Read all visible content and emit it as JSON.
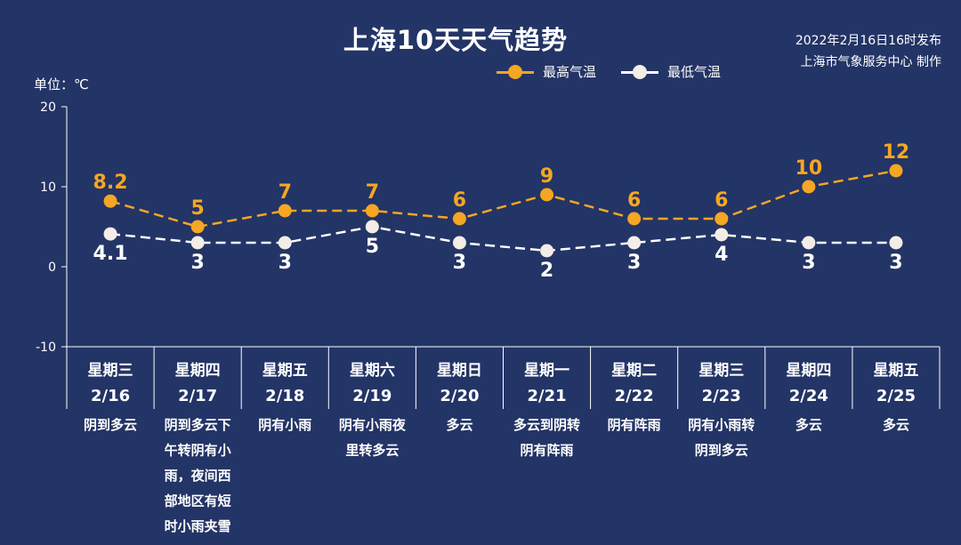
{
  "header": {
    "title": "上海10天天气趋势",
    "issue_time": "2022年2月16日16时发布",
    "issuer": "上海市气象服务中心 制作"
  },
  "unit_label": "单位：℃",
  "colors": {
    "background": "#233466",
    "high": "#f5a623",
    "low": "#ffffff"
  },
  "chart_data": {
    "type": "line",
    "ylim": [
      -10,
      20
    ],
    "yticks": [
      -10,
      0,
      10,
      20
    ],
    "grid": false,
    "legend_position": "top-right",
    "categories": [
      "2/16",
      "2/17",
      "2/18",
      "2/19",
      "2/20",
      "2/21",
      "2/22",
      "2/23",
      "2/24",
      "2/25"
    ],
    "weekdays": [
      "星期三",
      "星期四",
      "星期五",
      "星期六",
      "星期日",
      "星期一",
      "星期二",
      "星期三",
      "星期四",
      "星期五"
    ],
    "weather": [
      [
        "阴到多云"
      ],
      [
        "阴到多云下",
        "午转阴有小",
        "雨，夜间西",
        "部地区有短",
        "时小雨夹雪"
      ],
      [
        "阴有小雨"
      ],
      [
        "阴有小雨夜",
        "里转多云"
      ],
      [
        "多云"
      ],
      [
        "多云到阴转",
        "阴有阵雨"
      ],
      [
        "阴有阵雨"
      ],
      [
        "阴有小雨转",
        "阴到多云"
      ],
      [
        "多云"
      ],
      [
        "多云"
      ]
    ],
    "series": [
      {
        "name": "最高气温",
        "values": [
          8.2,
          5,
          7,
          7,
          6,
          9,
          6,
          6,
          10,
          12
        ],
        "labels": [
          "8.2",
          "5",
          "7",
          "7",
          "6",
          "9",
          "6",
          "6",
          "10",
          "12"
        ],
        "color": "#f5a623"
      },
      {
        "name": "最低气温",
        "values": [
          4.1,
          3,
          3,
          5,
          3,
          2,
          3,
          4,
          3,
          3
        ],
        "labels": [
          "4.1",
          "3",
          "3",
          "5",
          "3",
          "2",
          "3",
          "4",
          "3",
          "3"
        ],
        "color": "#ffffff"
      }
    ]
  }
}
